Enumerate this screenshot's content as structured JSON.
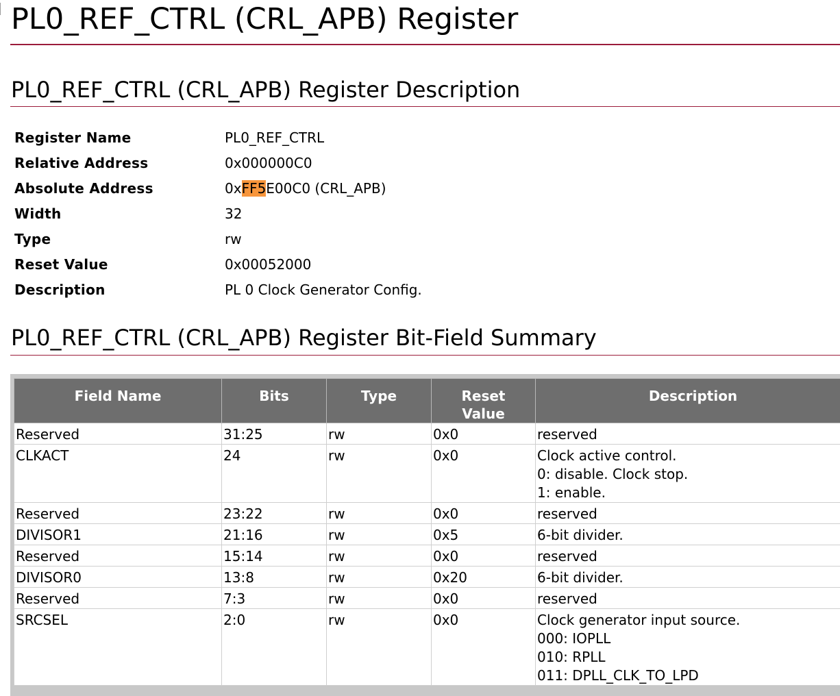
{
  "page": {
    "title": "PL0_REF_CTRL (CRL_APB) Register"
  },
  "description_section": {
    "title": "PL0_REF_CTRL (CRL_APB) Register Description",
    "rows": [
      {
        "key": "Register Name",
        "value": "PL0_REF_CTRL"
      },
      {
        "key": "Relative Address",
        "value": "0x000000C0"
      },
      {
        "key": "Absolute Address",
        "value_prefix": "0x",
        "value_highlight": "FF5",
        "value_suffix": "E00C0 (CRL_APB)"
      },
      {
        "key": "Width",
        "value": "32"
      },
      {
        "key": "Type",
        "value": "rw"
      },
      {
        "key": "Reset Value",
        "value": "0x00052000"
      },
      {
        "key": "Description",
        "value": "PL 0 Clock Generator Config."
      }
    ],
    "highlight_color": "#f7953b"
  },
  "summary_section": {
    "title": "PL0_REF_CTRL (CRL_APB) Register Bit-Field Summary",
    "columns": [
      "Field Name",
      "Bits",
      "Type",
      "Reset Value",
      "Description"
    ],
    "rows": [
      {
        "field": "Reserved",
        "bits": "31:25",
        "type": "rw",
        "reset": "0x0",
        "desc": [
          "reserved"
        ]
      },
      {
        "field": "CLKACT",
        "bits": "24",
        "type": "rw",
        "reset": "0x0",
        "desc": [
          "Clock active control.",
          "0: disable. Clock stop.",
          "1: enable."
        ]
      },
      {
        "field": "Reserved",
        "bits": "23:22",
        "type": "rw",
        "reset": "0x0",
        "desc": [
          "reserved"
        ]
      },
      {
        "field": "DIVISOR1",
        "bits": "21:16",
        "type": "rw",
        "reset": "0x5",
        "desc": [
          "6-bit divider."
        ]
      },
      {
        "field": "Reserved",
        "bits": "15:14",
        "type": "rw",
        "reset": "0x0",
        "desc": [
          "reserved"
        ]
      },
      {
        "field": "DIVISOR0",
        "bits": "13:8",
        "type": "rw",
        "reset": "0x20",
        "desc": [
          "6-bit divider."
        ]
      },
      {
        "field": "Reserved",
        "bits": "7:3",
        "type": "rw",
        "reset": "0x0",
        "desc": [
          "reserved"
        ]
      },
      {
        "field": "SRCSEL",
        "bits": "2:0",
        "type": "rw",
        "reset": "0x0",
        "desc": [
          "Clock generator input source.",
          "000: IOPLL",
          "010: RPLL",
          "011: DPLL_CLK_TO_LPD"
        ]
      }
    ],
    "header_bg": "#6e6e6e"
  },
  "colors": {
    "rule": "#9b1b3a"
  }
}
